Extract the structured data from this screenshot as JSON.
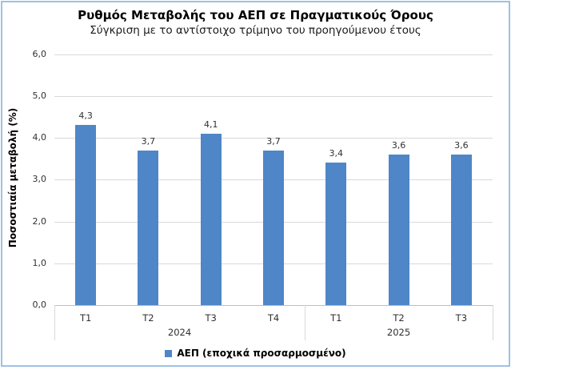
{
  "colors": {
    "bar": "#4E86C8",
    "chart_border": "#9CC2E5",
    "gridline": "#D9D9D9",
    "axis_line": "#BFBFBF"
  },
  "chart_data": {
    "type": "bar",
    "title": "Ρυθμός Μεταβολής του ΑΕΠ σε Πραγματικούς Όρους",
    "subtitle": "Σύγκριση με το αντίστοιχο τρίμηνο του προηγούμενου έτους",
    "ylabel": "Ποσοστιαία μεταβολή (%)",
    "xlabel": "",
    "ylim": [
      0,
      6
    ],
    "ytick_step": 1,
    "ytick_labels": [
      "0,0",
      "1,0",
      "2,0",
      "3,0",
      "4,0",
      "5,0",
      "6,0"
    ],
    "grid": true,
    "legend_position": "bottom",
    "categories": [
      "T1",
      "T2",
      "T3",
      "T4",
      "T1",
      "T2",
      "T3"
    ],
    "groups": [
      {
        "label": "2024",
        "count": 4
      },
      {
        "label": "2025",
        "count": 3
      }
    ],
    "series": [
      {
        "name": "ΑΕΠ (εποχικά προσαρμοσμένο)",
        "values": [
          4.3,
          3.7,
          4.1,
          3.7,
          3.4,
          3.6,
          3.6
        ],
        "value_labels": [
          "4,3",
          "3,7",
          "4,1",
          "3,7",
          "3,4",
          "3,6",
          "3,6"
        ]
      }
    ]
  }
}
